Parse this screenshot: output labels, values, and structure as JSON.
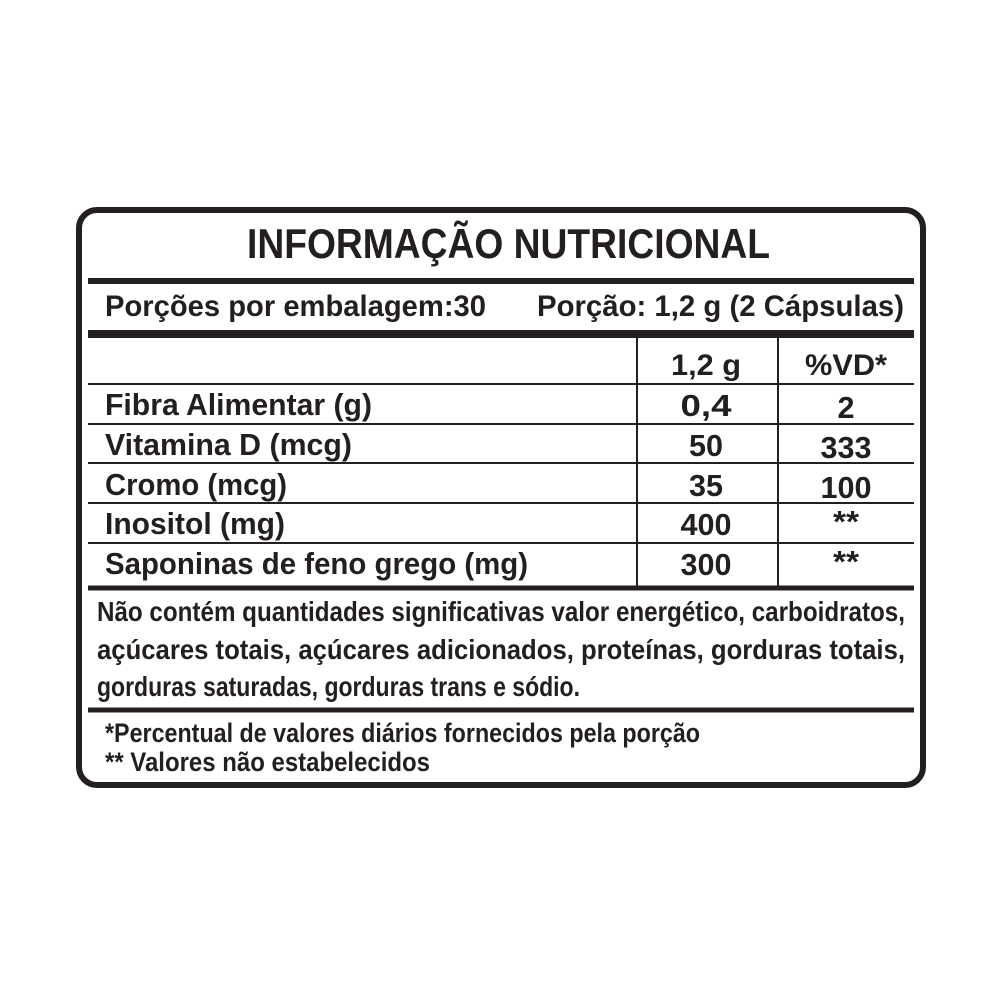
{
  "header": {
    "title": "INFORMAÇÃO NUTRICIONAL"
  },
  "serving": {
    "portions": "Porções por embalagem:30",
    "portion": "Porção: 1,2 g (2 Cápsulas)"
  },
  "table": {
    "columns": [
      "1,2 g",
      "%VD*"
    ],
    "rows": [
      [
        "Fibra Alimentar (g)",
        "0,4",
        "2"
      ],
      [
        "Vitamina D (mcg)",
        "50",
        "333"
      ],
      [
        "Cromo (mcg)",
        "35",
        "100"
      ],
      [
        "Inositol (mg)",
        "400",
        "**"
      ],
      [
        "Saponinas de feno grego (mg)",
        "300",
        "**"
      ]
    ]
  },
  "notes": [
    "Não contém quantidades significativas valor energético, carboidratos,",
    "açúcares totais, açúcares adicionados, proteínas, gorduras totais,",
    "gorduras saturadas, gorduras trans e sódio."
  ],
  "footnotes": [
    "*Percentual de valores diários fornecidos pela porção",
    "** Valores não estabelecidos"
  ]
}
